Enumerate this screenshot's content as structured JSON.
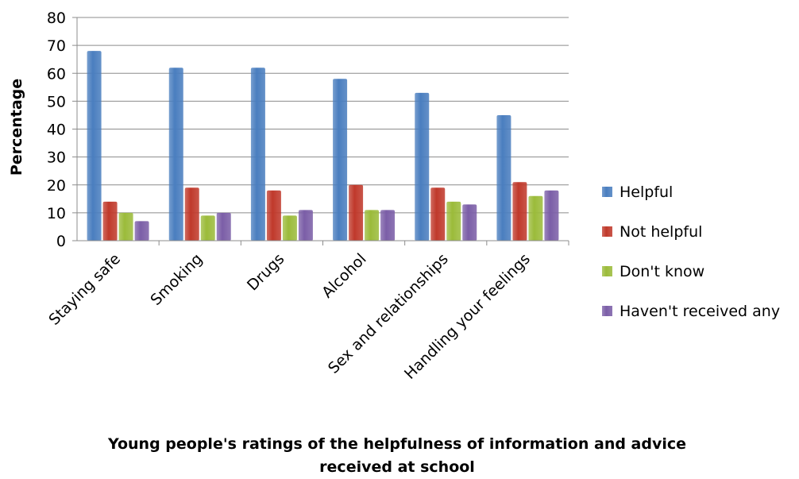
{
  "chart_data": {
    "type": "bar",
    "title": "Young people's ratings of the helpfulness of information and advice received at school",
    "xlabel": "",
    "ylabel": "Percentage",
    "ylim": [
      0,
      80
    ],
    "yticks": [
      0,
      10,
      20,
      30,
      40,
      50,
      60,
      70,
      80
    ],
    "grid": true,
    "legend_position": "right",
    "categories": [
      "Staying safe",
      "Smoking",
      "Drugs",
      "Alcohol",
      "Sex and relationships",
      "Handling your feelings"
    ],
    "series": [
      {
        "name": "Helpful",
        "color": "#4a7ebf",
        "values": [
          68,
          62,
          62,
          58,
          53,
          45
        ]
      },
      {
        "name": "Not helpful",
        "color": "#c0392b",
        "values": [
          14,
          19,
          18,
          20,
          19,
          21
        ]
      },
      {
        "name": "Don't know",
        "color": "#9bbb3a",
        "values": [
          10,
          9,
          9,
          11,
          14,
          16
        ]
      },
      {
        "name": "Haven't received any",
        "color": "#7b5ea7",
        "values": [
          7,
          10,
          11,
          11,
          13,
          18
        ]
      }
    ]
  }
}
